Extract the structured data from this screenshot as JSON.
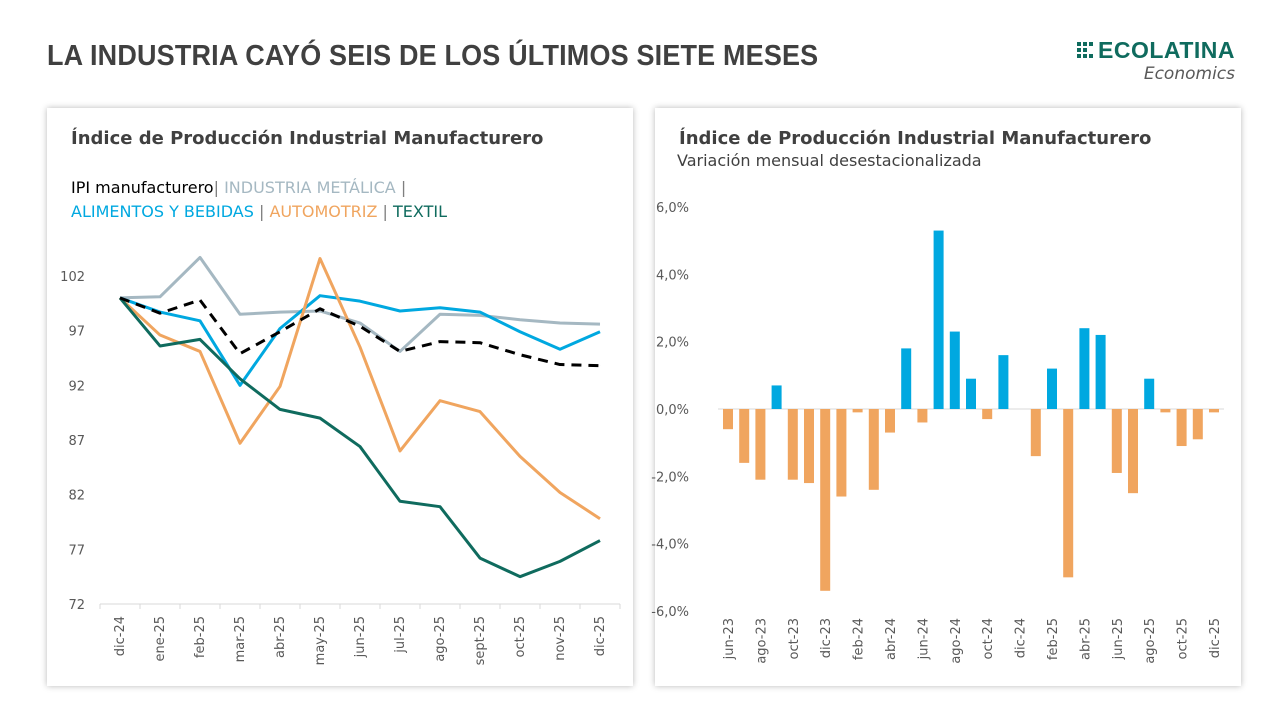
{
  "header": {
    "title": "LA INDUSTRIA CAYÓ SEIS DE LOS ÚLTIMOS SIETE MESES",
    "logo_name": "ECOLATINA",
    "logo_sub": "Economics",
    "brand_color": "#0f6b5e"
  },
  "left_card": {
    "title": "Índice de Producción Industrial Manufacturero",
    "legend": [
      {
        "label": "IPI manufacturero",
        "color": "#000000"
      },
      {
        "label": "INDUSTRIA METÁLICA",
        "color": "#a5b8c2"
      },
      {
        "label": "ALIMENTOS Y BEBIDAS",
        "color": "#00a8e0"
      },
      {
        "label": "AUTOMOTRIZ",
        "color": "#f0a55f"
      },
      {
        "label": "TEXTIL",
        "color": "#0f6b5e"
      }
    ],
    "separator": "|"
  },
  "right_card": {
    "title": "Índice de Producción Industrial Manufacturero",
    "subtitle": "Variación mensual desestacionalizada"
  },
  "chart_data": [
    {
      "type": "line",
      "title": "Índice de Producción Industrial Manufacturero",
      "xlabel": "",
      "ylabel": "",
      "x": [
        "dic-24",
        "ene-25",
        "feb-25",
        "mar-25",
        "abr-25",
        "may-25",
        "jun-25",
        "jul-25",
        "ago-25",
        "sept-25",
        "oct-25",
        "nov-25",
        "dic-25"
      ],
      "ylim": [
        72,
        107
      ],
      "yticks": [
        72,
        77,
        82,
        87,
        92,
        97,
        102
      ],
      "grid": false,
      "legend_position": "top-left",
      "series": [
        {
          "name": "INDUSTRIA METÁLICA",
          "color": "#a5b8c2",
          "style": "solid",
          "values": [
            100,
            100.1,
            103.7,
            98.5,
            98.7,
            98.8,
            97.7,
            95.1,
            98.5,
            98.4,
            98.0,
            97.7,
            97.6
          ]
        },
        {
          "name": "ALIMENTOS Y BEBIDAS",
          "color": "#00a8e0",
          "style": "solid",
          "values": [
            100,
            98.7,
            97.9,
            92.0,
            97.2,
            100.2,
            99.7,
            98.8,
            99.1,
            98.7,
            96.9,
            95.3,
            96.9
          ]
        },
        {
          "name": "AUTOMOTRIZ",
          "color": "#f0a55f",
          "style": "solid",
          "values": [
            100,
            96.6,
            95.1,
            86.7,
            91.9,
            103.6,
            95.5,
            86.0,
            90.6,
            89.6,
            85.5,
            82.2,
            79.8
          ]
        },
        {
          "name": "TEXTIL",
          "color": "#0f6b5e",
          "style": "solid",
          "values": [
            100,
            95.6,
            96.2,
            92.6,
            89.8,
            89.0,
            86.4,
            81.4,
            80.9,
            76.2,
            74.5,
            75.9,
            77.8
          ]
        },
        {
          "name": "IPI manufacturero",
          "color": "#000000",
          "style": "dashed",
          "values": [
            100,
            98.6,
            99.8,
            94.9,
            96.9,
            99.0,
            97.4,
            95.1,
            96.0,
            95.9,
            94.8,
            93.9,
            93.8
          ]
        }
      ]
    },
    {
      "type": "bar",
      "title": "Índice de Producción Industrial Manufacturero",
      "subtitle": "Variación mensual desestacionalizada",
      "xlabel": "",
      "ylabel": "",
      "categories": [
        "jun-23",
        "jul-23",
        "ago-23",
        "sep-23",
        "oct-23",
        "nov-23",
        "dic-23",
        "ene-24",
        "feb-24",
        "mar-24",
        "abr-24",
        "may-24",
        "jun-24",
        "jul-24",
        "ago-24",
        "sep-24",
        "oct-24",
        "nov-24",
        "dic-24",
        "ene-25",
        "feb-25",
        "mar-25",
        "abr-25",
        "may-25",
        "jun-25",
        "jul-25",
        "ago-25",
        "sep-25",
        "oct-25",
        "nov-25",
        "dic-25"
      ],
      "tick_labels": [
        "jun-23",
        "ago-23",
        "oct-23",
        "dic-23",
        "feb-24",
        "abr-24",
        "jun-24",
        "ago-24",
        "oct-24",
        "dic-24",
        "feb-25",
        "abr-25",
        "jun-25",
        "ago-25",
        "oct-25",
        "dic-25"
      ],
      "values": [
        -0.6,
        -1.6,
        -2.1,
        0.7,
        -2.1,
        -2.2,
        -5.4,
        -2.6,
        -0.1,
        -2.4,
        -0.7,
        1.8,
        -0.4,
        5.3,
        2.3,
        0.9,
        -0.3,
        1.6,
        0.0,
        -1.4,
        1.2,
        -5.0,
        2.4,
        2.2,
        -1.9,
        -2.5,
        0.9,
        -0.1,
        -1.1,
        -0.9,
        -0.1
      ],
      "unit": "%",
      "ylim": [
        -6.0,
        6.0
      ],
      "yticks": [
        "-6,0%",
        "-4,0%",
        "-2,0%",
        "0,0%",
        "2,0%",
        "4,0%",
        "6,0%"
      ],
      "ytick_values": [
        -6,
        -4,
        -2,
        0,
        2,
        4,
        6
      ],
      "negative_tick_color": "#ff0000",
      "positive_color": "#00a8e0",
      "negative_color": "#f0a55f",
      "grid": false
    }
  ]
}
